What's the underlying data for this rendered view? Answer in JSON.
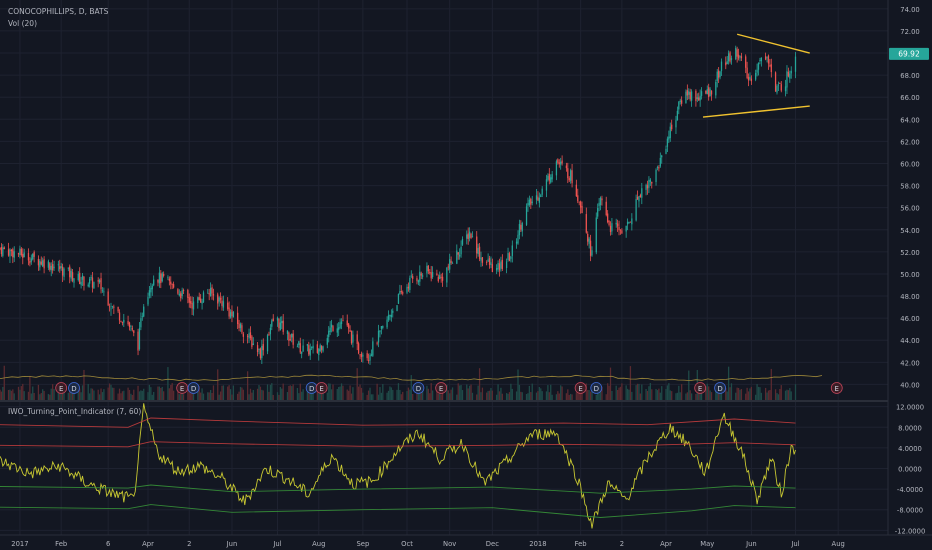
{
  "header": {
    "symbol_title": "CONOCOPHILLIPS, D, BATS",
    "volume_label": "Vol (20)"
  },
  "indicator": {
    "title": "IWO_Turning_Point_Indicator (7, 60)"
  },
  "price": {
    "last": "69.92",
    "colors": {
      "up": "#26a69a",
      "down": "#ef5350",
      "last_badge": "#26a69a",
      "trendline": "#f0c22f"
    }
  },
  "chart_data": [
    {
      "type": "candlestick",
      "title": "CONOCOPHILLIPS, D, BATS",
      "x_range": [
        "2016-12-20",
        "2018-09-05"
      ],
      "y_range": [
        38.5,
        74.8
      ],
      "y_ticks": [
        "74.00",
        "72.00",
        "70.00",
        "68.00",
        "66.00",
        "64.00",
        "62.00",
        "60.00",
        "58.00",
        "56.00",
        "54.00",
        "52.00",
        "50.00",
        "48.00",
        "46.00",
        "44.00",
        "42.00",
        "40.00"
      ],
      "x_ticks": [
        "2017",
        "Feb",
        "6",
        "Apr",
        "2",
        "Jun",
        "Jul",
        "Aug",
        "Sep",
        "Oct",
        "Nov",
        "Dec",
        "2018",
        "Feb",
        "2",
        "Apr",
        "May",
        "Jun",
        "Jul",
        "Aug"
      ],
      "close_path": [
        [
          "2016-12-20",
          52.3
        ],
        [
          "2017-01-03",
          51.8
        ],
        [
          "2017-01-17",
          51.2
        ],
        [
          "2017-01-31",
          50.5
        ],
        [
          "2017-02-14",
          49.5
        ],
        [
          "2017-02-28",
          49.0
        ],
        [
          "2017-03-10",
          46.8
        ],
        [
          "2017-03-20",
          45.5
        ],
        [
          "2017-03-27",
          43.6
        ],
        [
          "2017-03-31",
          47.5
        ],
        [
          "2017-04-07",
          49.8
        ],
        [
          "2017-04-14",
          49.5
        ],
        [
          "2017-04-24",
          48.5
        ],
        [
          "2017-05-05",
          47.2
        ],
        [
          "2017-05-15",
          48.4
        ],
        [
          "2017-05-25",
          47.5
        ],
        [
          "2017-06-05",
          45.5
        ],
        [
          "2017-06-14",
          44.0
        ],
        [
          "2017-06-21",
          42.9
        ],
        [
          "2017-07-01",
          46.1
        ],
        [
          "2017-07-10",
          44.5
        ],
        [
          "2017-07-20",
          43.2
        ],
        [
          "2017-07-31",
          43.0
        ],
        [
          "2017-08-10",
          45.2
        ],
        [
          "2017-08-18",
          45.8
        ],
        [
          "2017-08-28",
          43.2
        ],
        [
          "2017-09-05",
          42.7
        ],
        [
          "2017-09-15",
          45.0
        ],
        [
          "2017-09-25",
          47.6
        ],
        [
          "2017-10-05",
          49.5
        ],
        [
          "2017-10-16",
          50.2
        ],
        [
          "2017-10-26",
          49.6
        ],
        [
          "2017-11-06",
          51.8
        ],
        [
          "2017-11-15",
          53.8
        ],
        [
          "2017-11-23",
          51.5
        ],
        [
          "2017-12-04",
          50.3
        ],
        [
          "2017-12-14",
          51.7
        ],
        [
          "2017-12-24",
          55.8
        ],
        [
          "2018-01-05",
          57.6
        ],
        [
          "2018-01-15",
          60.2
        ],
        [
          "2018-01-25",
          58.9
        ],
        [
          "2018-02-02",
          56.0
        ],
        [
          "2018-02-08",
          52.0
        ],
        [
          "2018-02-15",
          56.8
        ],
        [
          "2018-02-22",
          54.2
        ],
        [
          "2018-03-05",
          54.0
        ],
        [
          "2018-03-15",
          57.5
        ],
        [
          "2018-03-25",
          58.8
        ],
        [
          "2018-04-05",
          63.0
        ],
        [
          "2018-04-15",
          66.5
        ],
        [
          "2018-04-24",
          66.0
        ],
        [
          "2018-05-03",
          66.5
        ],
        [
          "2018-05-12",
          69.0
        ],
        [
          "2018-05-22",
          70.2
        ],
        [
          "2018-05-30",
          67.5
        ],
        [
          "2018-06-05",
          68.8
        ],
        [
          "2018-06-12",
          70.0
        ],
        [
          "2018-06-18",
          66.5
        ],
        [
          "2018-06-25",
          67.5
        ],
        [
          "2018-07-02",
          69.9
        ]
      ],
      "trendlines": [
        {
          "from": [
            "2018-05-22",
            71.7
          ],
          "to": [
            "2018-07-12",
            70.0
          ]
        },
        {
          "from": [
            "2018-04-28",
            64.2
          ],
          "to": [
            "2018-07-12",
            65.2
          ]
        }
      ],
      "events": [
        {
          "label": "E",
          "date": "2017-02-01",
          "kind": "earnings"
        },
        {
          "label": "D",
          "date": "2017-02-10",
          "kind": "dividend"
        },
        {
          "label": "E",
          "date": "2017-04-27",
          "kind": "earnings"
        },
        {
          "label": "D",
          "date": "2017-05-05",
          "kind": "dividend"
        },
        {
          "label": "D",
          "date": "2017-07-27",
          "kind": "dividend"
        },
        {
          "label": "E",
          "date": "2017-08-03",
          "kind": "earnings"
        },
        {
          "label": "D",
          "date": "2017-10-10",
          "kind": "dividend"
        },
        {
          "label": "E",
          "date": "2017-10-26",
          "kind": "earnings"
        },
        {
          "label": "E",
          "date": "2018-02-01",
          "kind": "earnings"
        },
        {
          "label": "D",
          "date": "2018-02-12",
          "kind": "dividend"
        },
        {
          "label": "E",
          "date": "2018-04-26",
          "kind": "earnings"
        },
        {
          "label": "D",
          "date": "2018-05-10",
          "kind": "dividend"
        },
        {
          "label": "E",
          "date": "2018-07-31",
          "kind": "earnings"
        }
      ]
    },
    {
      "type": "line",
      "title": "IWO_Turning_Point_Indicator (7, 60)",
      "y_range": [
        -12.9,
        12.9
      ],
      "y_ticks": [
        "12.0000",
        "8.0000",
        "4.0000",
        "0.0000",
        "-4.0000",
        "-8.0000",
        "-12.0000"
      ],
      "series": [
        {
          "color": "#c8c832",
          "path": [
            [
              "2016-12-20",
              1.5
            ],
            [
              "2017-01-10",
              -1.0
            ],
            [
              "2017-01-31",
              0.5
            ],
            [
              "2017-02-20",
              -3.0
            ],
            [
              "2017-03-10",
              -5.0
            ],
            [
              "2017-03-24",
              -6.0
            ],
            [
              "2017-03-31",
              11.5
            ],
            [
              "2017-04-10",
              3.0
            ],
            [
              "2017-04-24",
              -0.5
            ],
            [
              "2017-05-10",
              0.5
            ],
            [
              "2017-05-25",
              -2.0
            ],
            [
              "2017-06-10",
              -6.5
            ],
            [
              "2017-06-25",
              0.0
            ],
            [
              "2017-07-10",
              -2.0
            ],
            [
              "2017-07-25",
              -5.0
            ],
            [
              "2017-08-10",
              2.5
            ],
            [
              "2017-08-25",
              -3.0
            ],
            [
              "2017-09-08",
              -2.5
            ],
            [
              "2017-09-25",
              3.5
            ],
            [
              "2017-10-10",
              7.0
            ],
            [
              "2017-10-25",
              2.0
            ],
            [
              "2017-11-10",
              5.0
            ],
            [
              "2017-11-25",
              -3.0
            ],
            [
              "2017-12-10",
              1.0
            ],
            [
              "2017-12-28",
              6.5
            ],
            [
              "2018-01-15",
              7.0
            ],
            [
              "2018-01-30",
              -2.0
            ],
            [
              "2018-02-09",
              -11.0
            ],
            [
              "2018-02-20",
              -3.0
            ],
            [
              "2018-03-05",
              -6.0
            ],
            [
              "2018-03-20",
              2.0
            ],
            [
              "2018-04-05",
              8.0
            ],
            [
              "2018-04-18",
              4.5
            ],
            [
              "2018-04-30",
              -1.0
            ],
            [
              "2018-05-12",
              10.5
            ],
            [
              "2018-05-25",
              3.5
            ],
            [
              "2018-06-05",
              -6.0
            ],
            [
              "2018-06-15",
              2.0
            ],
            [
              "2018-06-22",
              -5.0
            ],
            [
              "2018-06-29",
              4.0
            ],
            [
              "2018-07-02",
              3.8
            ]
          ]
        },
        {
          "color": "#d04040",
          "path": [
            [
              "2016-12-20",
              8.5
            ],
            [
              "2017-03-20",
              8.0
            ],
            [
              "2017-04-05",
              9.8
            ],
            [
              "2017-06-01",
              9.2
            ],
            [
              "2017-09-01",
              8.4
            ],
            [
              "2017-12-01",
              8.6
            ],
            [
              "2018-01-20",
              8.8
            ],
            [
              "2018-03-20",
              8.5
            ],
            [
              "2018-05-20",
              9.6
            ],
            [
              "2018-07-02",
              8.8
            ]
          ]
        },
        {
          "color": "#d04040",
          "path": [
            [
              "2016-12-20",
              4.5
            ],
            [
              "2017-03-20",
              4.2
            ],
            [
              "2017-04-05",
              5.2
            ],
            [
              "2017-06-01",
              4.8
            ],
            [
              "2017-09-01",
              4.3
            ],
            [
              "2017-12-01",
              4.5
            ],
            [
              "2018-01-20",
              4.7
            ],
            [
              "2018-03-20",
              4.5
            ],
            [
              "2018-05-20",
              5.0
            ],
            [
              "2018-07-02",
              4.6
            ]
          ]
        },
        {
          "color": "#3a9a3a",
          "path": [
            [
              "2016-12-20",
              -3.5
            ],
            [
              "2017-03-20",
              -3.8
            ],
            [
              "2017-04-05",
              -3.2
            ],
            [
              "2017-06-01",
              -4.5
            ],
            [
              "2017-09-01",
              -4.0
            ],
            [
              "2017-12-01",
              -3.6
            ],
            [
              "2018-02-15",
              -4.8
            ],
            [
              "2018-04-20",
              -4.0
            ],
            [
              "2018-05-20",
              -3.4
            ],
            [
              "2018-07-02",
              -3.8
            ]
          ]
        },
        {
          "color": "#3a9a3a",
          "path": [
            [
              "2016-12-20",
              -7.5
            ],
            [
              "2017-03-20",
              -7.8
            ],
            [
              "2017-04-05",
              -7.0
            ],
            [
              "2017-06-01",
              -8.5
            ],
            [
              "2017-09-01",
              -8.0
            ],
            [
              "2017-12-01",
              -7.6
            ],
            [
              "2018-02-15",
              -9.5
            ],
            [
              "2018-04-20",
              -8.2
            ],
            [
              "2018-05-20",
              -7.2
            ],
            [
              "2018-07-02",
              -7.6
            ]
          ]
        }
      ]
    }
  ]
}
